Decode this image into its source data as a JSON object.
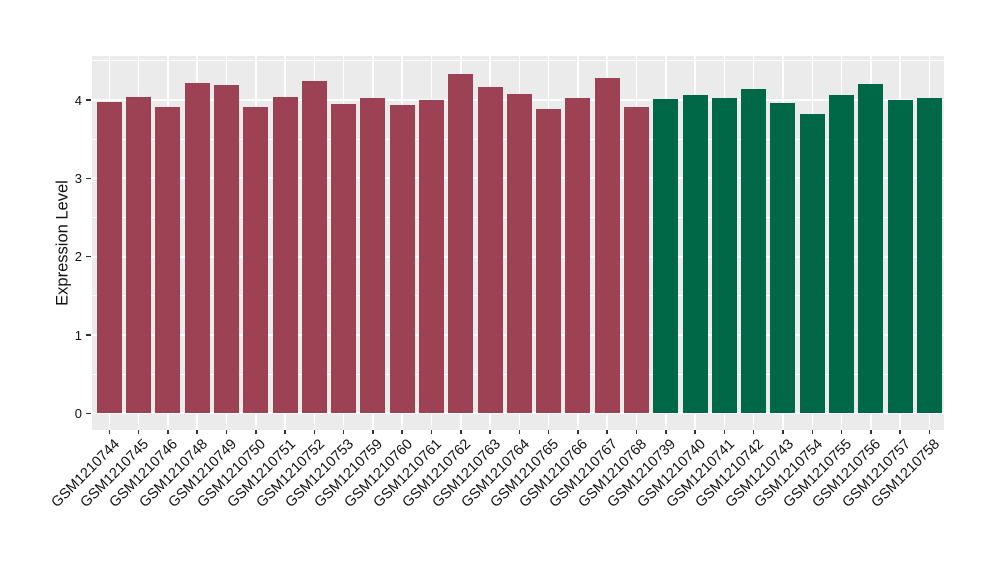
{
  "figure": {
    "background": "#FFFFFF"
  },
  "chart_data": {
    "type": "bar",
    "title": "",
    "xlabel": "",
    "ylabel": "Expression Level",
    "categories": [
      "GSM1210744",
      "GSM1210745",
      "GSM1210746",
      "GSM1210748",
      "GSM1210749",
      "GSM1210750",
      "GSM1210751",
      "GSM1210752",
      "GSM1210753",
      "GSM1210759",
      "GSM1210760",
      "GSM1210761",
      "GSM1210762",
      "GSM1210763",
      "GSM1210764",
      "GSM1210765",
      "GSM1210766",
      "GSM1210767",
      "GSM1210768",
      "GSM1210739",
      "GSM1210740",
      "GSM1210741",
      "GSM1210742",
      "GSM1210743",
      "GSM1210754",
      "GSM1210755",
      "GSM1210756",
      "GSM1210757",
      "GSM1210758"
    ],
    "values": [
      3.97,
      4.04,
      3.91,
      4.22,
      4.19,
      3.91,
      4.04,
      4.25,
      3.95,
      4.03,
      3.94,
      4.0,
      4.33,
      4.17,
      4.08,
      3.88,
      4.03,
      4.28,
      3.91,
      4.01,
      4.06,
      4.03,
      4.14,
      3.96,
      3.82,
      4.06,
      4.21,
      4.0,
      4.03
    ],
    "group_index": [
      0,
      0,
      0,
      0,
      0,
      0,
      0,
      0,
      0,
      0,
      0,
      0,
      0,
      0,
      0,
      0,
      0,
      0,
      0,
      1,
      1,
      1,
      1,
      1,
      1,
      1,
      1,
      1,
      1
    ],
    "group_colors": [
      "#9C4254",
      "#006847"
    ],
    "y_ticks": [
      "0",
      "1",
      "2",
      "3",
      "4"
    ],
    "y_tick_values": [
      0,
      1,
      2,
      3,
      4
    ],
    "y_minor_tick_values": [
      0.5,
      1.5,
      2.5,
      3.5,
      4.5
    ],
    "ylim": [
      -0.22,
      4.56
    ],
    "grid": "major+minor",
    "legend": "none",
    "panel_bg": "#EBEBEB",
    "grid_color": "#FFFFFF",
    "axis_text_color": "#111111",
    "tick_mark_color": "#333333"
  }
}
